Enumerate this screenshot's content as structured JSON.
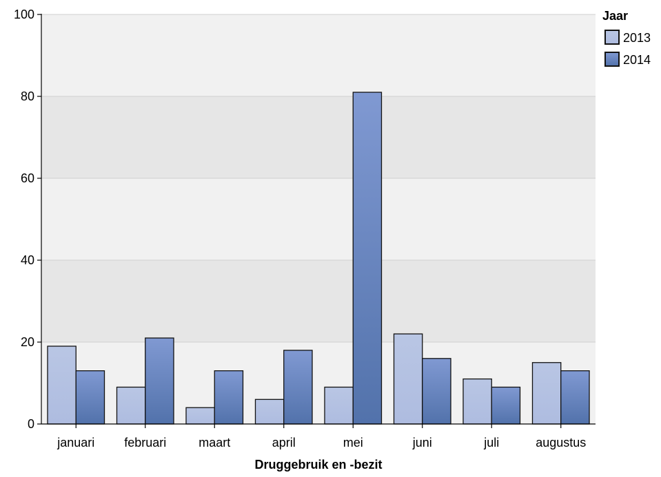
{
  "chart_data": {
    "type": "bar",
    "xlabel": "Druggebruik en -bezit",
    "ylabel": "",
    "ylim": [
      0,
      100
    ],
    "yticks": [
      0,
      20,
      40,
      60,
      80,
      100
    ],
    "grid": true,
    "legend_position": "top-right",
    "categories": [
      "januari",
      "februari",
      "maart",
      "april",
      "mei",
      "juni",
      "juli",
      "augustus"
    ],
    "legend": {
      "title": "Jaar"
    },
    "series": [
      {
        "name": "2013",
        "values": [
          19,
          9,
          4,
          6,
          9,
          22,
          11,
          15
        ],
        "color_top": "#b9c6e4",
        "color_bottom": "#aebce0"
      },
      {
        "name": "2014",
        "values": [
          13,
          21,
          13,
          18,
          81,
          16,
          9,
          13
        ],
        "color_top": "#8099d2",
        "color_bottom": "#5272ab"
      }
    ],
    "colors": {
      "band_dark": "#e6e6e6",
      "band_light": "#f1f1f1",
      "grid": "#d0d0d0",
      "bar_stroke": "#111111",
      "axis": "#000000"
    }
  }
}
